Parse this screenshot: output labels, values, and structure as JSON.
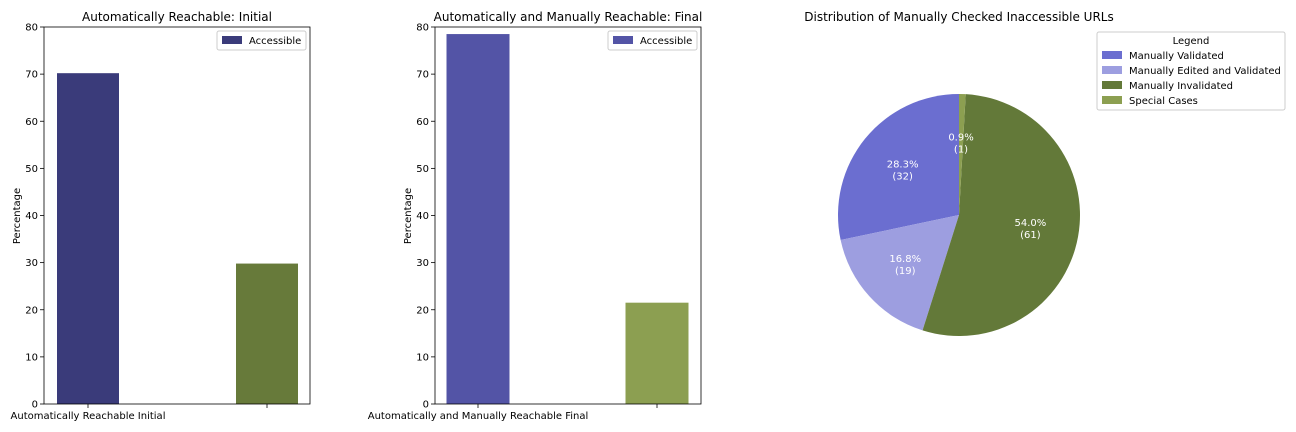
{
  "chart_data": [
    {
      "type": "bar",
      "title": "Automatically Reachable: Initial",
      "xlabel": "",
      "ylabel": "Percentage",
      "ylim": [
        0,
        80
      ],
      "yticks": [
        0,
        10,
        20,
        30,
        40,
        50,
        60,
        70,
        80
      ],
      "xtick_labels": [
        "Automatically Reachable Initial",
        ""
      ],
      "bars": [
        {
          "value": 70.2,
          "color": "#3a3b7a"
        },
        {
          "value": 29.8,
          "color": "#677a3a"
        }
      ],
      "legend": {
        "entries": [
          {
            "label": "Accessible",
            "color": "#3a3b7a"
          }
        ],
        "placement": "top-right"
      }
    },
    {
      "type": "bar",
      "title": "Automatically and Manually Reachable: Final",
      "xlabel": "",
      "ylabel": "Percentage",
      "ylim": [
        0,
        80
      ],
      "yticks": [
        0,
        10,
        20,
        30,
        40,
        50,
        60,
        70,
        80
      ],
      "xtick_labels": [
        "Automatically and Manually Reachable Final",
        ""
      ],
      "bars": [
        {
          "value": 78.5,
          "color": "#5354a6"
        },
        {
          "value": 21.5,
          "color": "#8c9f51"
        }
      ],
      "legend": {
        "entries": [
          {
            "label": "Accessible",
            "color": "#5354a6"
          }
        ],
        "placement": "top-right"
      }
    },
    {
      "type": "pie",
      "title": "Distribution of Manually Checked Inaccessible URLs",
      "slices": [
        {
          "label": "Manually Validated",
          "value": 32,
          "percent": "28.3%",
          "count": "(32)",
          "color": "#6b6ed0"
        },
        {
          "label": "Manually Edited and Validated",
          "value": 19,
          "percent": "16.8%",
          "count": "(19)",
          "color": "#9d9ee0"
        },
        {
          "label": "Manually Invalidated",
          "value": 61,
          "percent": "54.0%",
          "count": "(61)",
          "color": "#637939"
        },
        {
          "label": "Special Cases",
          "value": 1,
          "percent": "0.9%",
          "count": "(1)",
          "color": "#8c9f51"
        }
      ],
      "legend": {
        "title": "Legend",
        "placement": "top-right"
      }
    }
  ]
}
